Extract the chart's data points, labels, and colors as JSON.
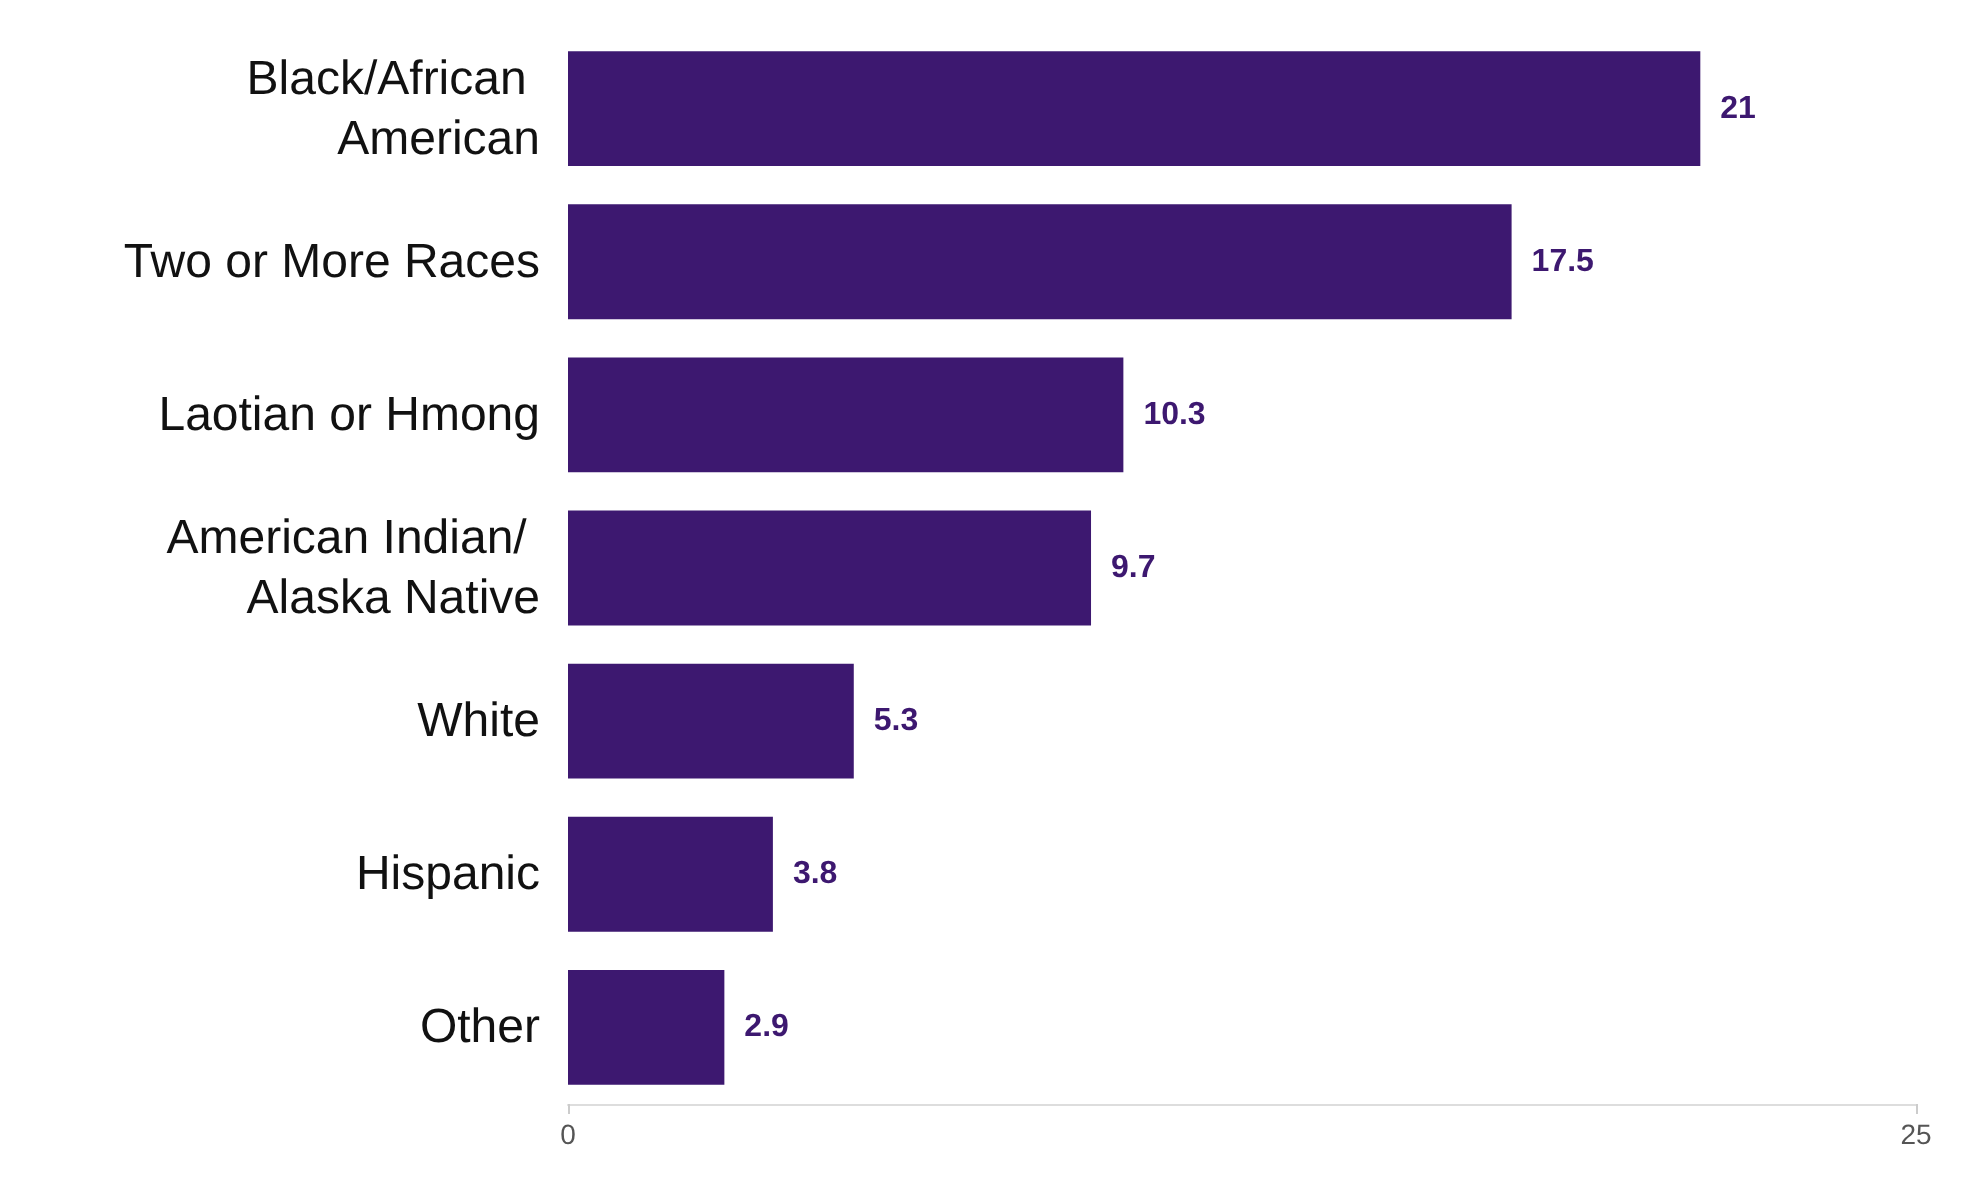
{
  "chart_data": {
    "type": "bar",
    "orientation": "horizontal",
    "categories": [
      "Black/African American",
      "Two or More Races",
      "Laotian or Hmong",
      "American Indian/ Alaska Native",
      "White",
      "Hispanic",
      "Other"
    ],
    "values": [
      21,
      17.5,
      10.3,
      9.7,
      5.3,
      3.8,
      2.9
    ],
    "color": "#3d1870",
    "xlim": [
      0,
      25
    ],
    "xticks": [
      0,
      25
    ],
    "data_labels": true
  }
}
